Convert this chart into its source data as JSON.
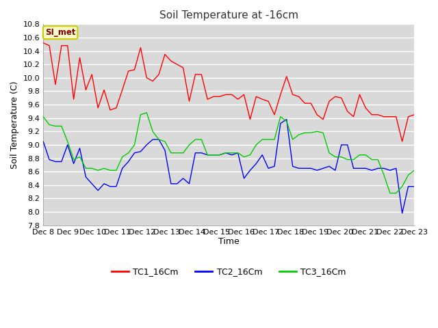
{
  "title": "Soil Temperature at -16cm",
  "xlabel": "Time",
  "ylabel": "Soil Temperature (C)",
  "ylim": [
    7.8,
    10.8
  ],
  "yticks": [
    7.8,
    8.0,
    8.2,
    8.4,
    8.6,
    8.8,
    9.0,
    9.2,
    9.4,
    9.6,
    9.8,
    10.0,
    10.2,
    10.4,
    10.6,
    10.8
  ],
  "xtick_labels": [
    "Dec 8",
    "Dec 9",
    "Dec 10",
    "Dec 11",
    "Dec 12",
    "Dec 13",
    "Dec 14",
    "Dec 15",
    "Dec 16",
    "Dec 17",
    "Dec 18",
    "Dec 19",
    "Dec 20",
    "Dec 21",
    "Dec 22",
    "Dec 23"
  ],
  "fig_bg_color": "#ffffff",
  "plot_bg_color": "#d9d9d9",
  "grid_color": "#ffffff",
  "annotation_box_color": "#ffffcc",
  "annotation_text": "SI_met",
  "annotation_text_color": "#800000",
  "annotation_box_edge_color": "#cccc00",
  "line_colors": {
    "TC1_16Cm": "#ff0000",
    "TC2_16Cm": "#0000ff",
    "TC3_16Cm": "#00cc00"
  },
  "legend_colors": {
    "TC1_16Cm": "#ff0000",
    "TC2_16Cm": "#0000ff",
    "TC3_16Cm": "#00cc00"
  },
  "TC1_16Cm": [
    10.52,
    10.48,
    9.9,
    10.48,
    10.48,
    9.68,
    10.3,
    9.82,
    10.05,
    9.55,
    9.82,
    9.52,
    9.55,
    9.82,
    10.1,
    10.12,
    10.45,
    10.0,
    9.95,
    10.05,
    10.35,
    10.25,
    10.2,
    10.15,
    9.65,
    10.05,
    10.05,
    9.68,
    9.72,
    9.72,
    9.75,
    9.75,
    9.68,
    9.75,
    9.38,
    9.72,
    9.68,
    9.65,
    9.45,
    9.75,
    10.02,
    9.75,
    9.72,
    9.62,
    9.62,
    9.45,
    9.38,
    9.65,
    9.72,
    9.7,
    9.5,
    9.42,
    9.75,
    9.55,
    9.45,
    9.45,
    9.42,
    9.42,
    9.42,
    9.05,
    9.42,
    9.45
  ],
  "TC2_16Cm": [
    9.05,
    8.78,
    8.75,
    8.75,
    9.0,
    8.72,
    8.95,
    8.52,
    8.42,
    8.32,
    8.42,
    8.38,
    8.38,
    8.65,
    8.75,
    8.88,
    8.9,
    9.0,
    9.08,
    9.08,
    8.92,
    8.42,
    8.42,
    8.5,
    8.42,
    8.88,
    8.88,
    8.85,
    8.85,
    8.85,
    8.88,
    8.85,
    8.88,
    8.5,
    8.62,
    8.72,
    8.85,
    8.65,
    8.68,
    9.32,
    9.38,
    8.68,
    8.65,
    8.65,
    8.65,
    8.62,
    8.65,
    8.68,
    8.62,
    9.0,
    9.0,
    8.65,
    8.65,
    8.65,
    8.62,
    8.65,
    8.65,
    8.62,
    8.65,
    7.98,
    8.38,
    8.38
  ],
  "TC3_16Cm": [
    9.42,
    9.3,
    9.28,
    9.28,
    9.05,
    8.78,
    8.82,
    8.65,
    8.65,
    8.62,
    8.65,
    8.62,
    8.62,
    8.82,
    8.88,
    9.0,
    9.45,
    9.48,
    9.2,
    9.08,
    9.05,
    8.88,
    8.88,
    8.88,
    9.0,
    9.08,
    9.08,
    8.85,
    8.85,
    8.85,
    8.88,
    8.88,
    8.88,
    8.82,
    8.85,
    9.0,
    9.08,
    9.08,
    9.08,
    9.42,
    9.35,
    9.08,
    9.15,
    9.18,
    9.18,
    9.2,
    9.18,
    8.88,
    8.82,
    8.82,
    8.78,
    8.78,
    8.85,
    8.85,
    8.78,
    8.78,
    8.55,
    8.28,
    8.28,
    8.38,
    8.55,
    8.62
  ]
}
